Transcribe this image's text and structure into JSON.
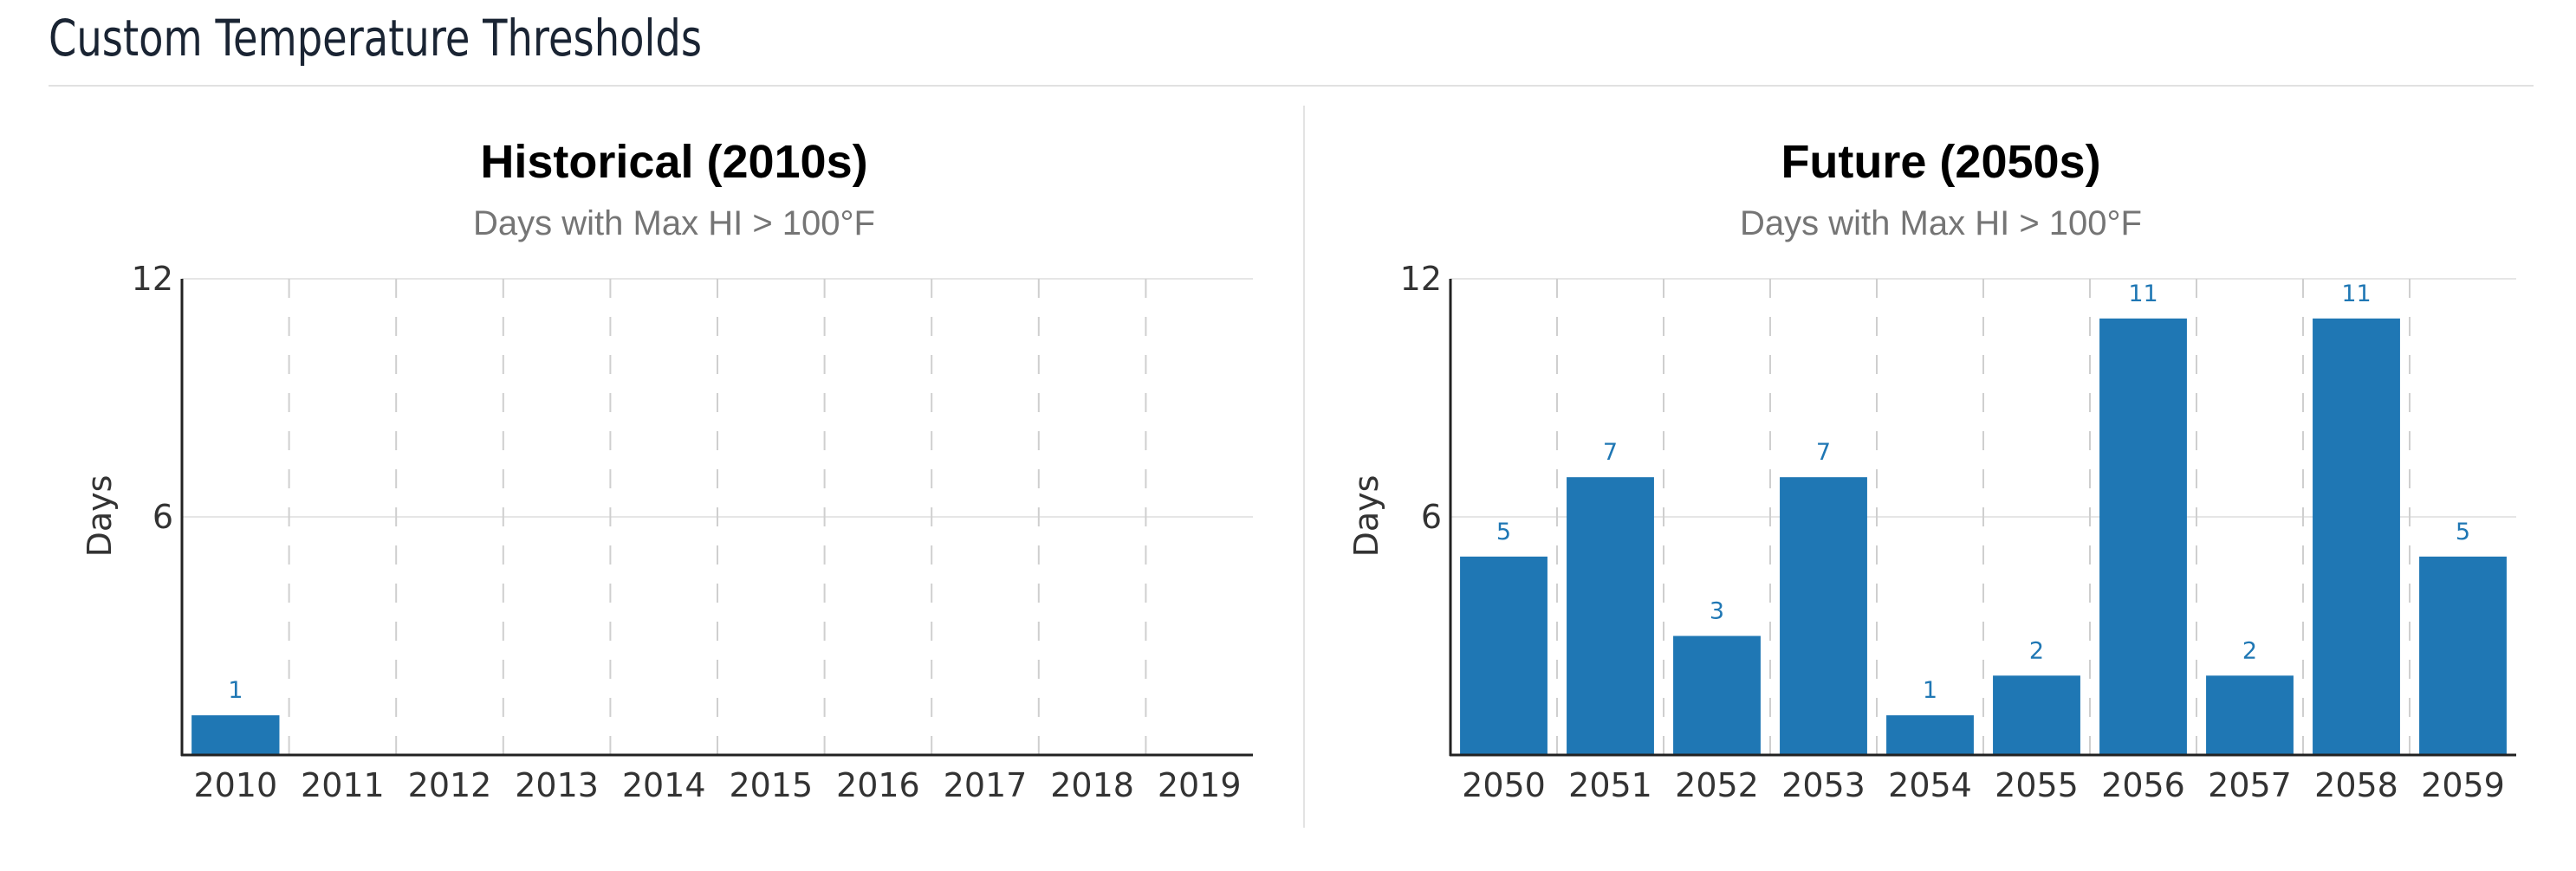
{
  "page": {
    "title": "Custom Temperature Thresholds"
  },
  "chart_data": [
    {
      "type": "bar",
      "title": "Historical (2010s)",
      "subtitle": "Days with Max HI > 100°F",
      "ylabel": "Days",
      "xlabel": "",
      "ylim": [
        0,
        12
      ],
      "yticks": [
        6,
        12
      ],
      "categories": [
        "2010",
        "2011",
        "2012",
        "2013",
        "2014",
        "2015",
        "2016",
        "2017",
        "2018",
        "2019"
      ],
      "values": [
        1,
        0,
        0,
        0,
        0,
        0,
        0,
        0,
        0,
        0
      ],
      "data_labels": [
        "1",
        "",
        "",
        "",
        "",
        "",
        "",
        "",
        "",
        ""
      ],
      "bar_color": "#1f77b4",
      "grid": {
        "x": "dashed",
        "y": "solid"
      }
    },
    {
      "type": "bar",
      "title": "Future (2050s)",
      "subtitle": "Days with Max HI > 100°F",
      "ylabel": "Days",
      "xlabel": "",
      "ylim": [
        0,
        12
      ],
      "yticks": [
        6,
        12
      ],
      "categories": [
        "2050",
        "2051",
        "2052",
        "2053",
        "2054",
        "2055",
        "2056",
        "2057",
        "2058",
        "2059"
      ],
      "values": [
        5,
        7,
        3,
        7,
        1,
        2,
        11,
        2,
        11,
        5
      ],
      "data_labels": [
        "5",
        "7",
        "3",
        "7",
        "1",
        "2",
        "11",
        "2",
        "11",
        "5"
      ],
      "bar_color": "#1f77b4",
      "grid": {
        "x": "dashed",
        "y": "solid"
      }
    }
  ]
}
